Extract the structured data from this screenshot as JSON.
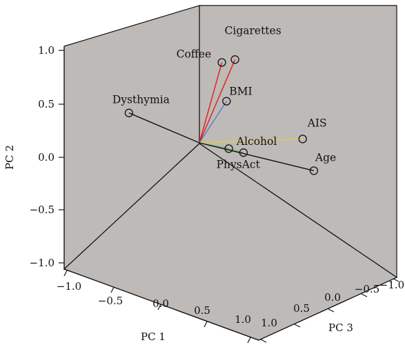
{
  "chart_data": {
    "type": "scatter",
    "title": "",
    "xlabel": "PC 1",
    "ylabel": "PC 2",
    "zlabel": "PC 3",
    "xlim": [
      -1,
      1
    ],
    "ylim": [
      -1,
      1
    ],
    "zlim": [
      -1,
      1
    ],
    "y_ticks": [
      "1.0",
      "0.5",
      "0.0",
      "−0.5",
      "−1.0"
    ],
    "x_ticks": [
      "−1.0",
      "−0.5",
      "0.0",
      "0.5",
      "1.0"
    ],
    "z_ticks": [
      "1.0",
      "0.5",
      "0.0",
      "−0.5",
      "−1.0"
    ],
    "background_color": "#bebab8",
    "vectors": [
      {
        "name": "Cigarettes",
        "x": 0.3,
        "y": 0.85,
        "z": -0.05,
        "color": "#e01b1b"
      },
      {
        "name": "Coffee",
        "x": 0.22,
        "y": 0.83,
        "z": 0.05,
        "color": "#e01b1b"
      },
      {
        "name": "BMI",
        "x": 0.25,
        "y": 0.46,
        "z": 0.02,
        "color": "#5b79c8"
      },
      {
        "name": "Dysthymia",
        "x": -0.63,
        "y": 0.14,
        "z": 0.0,
        "color": "#111111"
      },
      {
        "name": "AIS",
        "x": 0.85,
        "y": 0.18,
        "z": -0.2,
        "color": "#e6c84a"
      },
      {
        "name": "Alcohol",
        "x": 0.45,
        "y": 0.05,
        "z": 0.15,
        "color": "#6bb040"
      },
      {
        "name": "PhysAct",
        "x": 0.3,
        "y": 0.04,
        "z": 0.1,
        "color": "#6bb040"
      },
      {
        "name": "Age",
        "x": 0.95,
        "y": -0.1,
        "z": -0.2,
        "color": "#111111"
      }
    ]
  }
}
